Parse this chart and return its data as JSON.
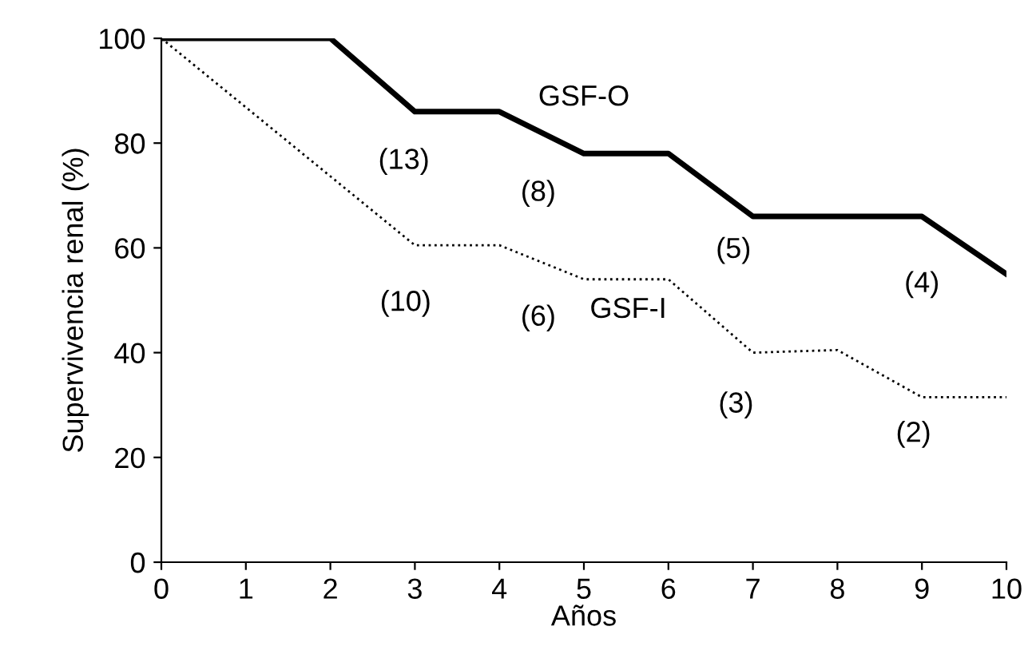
{
  "chart_data": {
    "type": "line",
    "xlabel": "Años",
    "ylabel": "Supervivencia renal (%)",
    "xlim": [
      0,
      10
    ],
    "ylim": [
      0,
      100
    ],
    "xticks": [
      0,
      1,
      2,
      3,
      4,
      5,
      6,
      7,
      8,
      9,
      10
    ],
    "yticks": [
      0,
      20,
      40,
      60,
      80,
      100
    ],
    "grid": false,
    "legend": false,
    "marker": "none",
    "series": [
      {
        "name": "GSF-O",
        "color": "#000000",
        "line_style": "solid",
        "x": [
          0,
          2,
          3,
          4,
          5,
          6,
          7,
          9,
          10
        ],
        "values": [
          100,
          100,
          86,
          86,
          78,
          78,
          66,
          66,
          55
        ]
      },
      {
        "name": "GSF-I",
        "color": "#000000",
        "line_style": "dotted",
        "x": [
          0,
          3,
          4,
          5,
          6,
          7,
          8,
          9,
          10
        ],
        "values": [
          100,
          60.5,
          60.5,
          54,
          54,
          40,
          40.5,
          31.5,
          31.5
        ]
      }
    ],
    "annotations": [
      "(13)",
      "(8)",
      "(5)",
      "(4)",
      "(10)",
      "(6)",
      "(3)",
      "(2)"
    ]
  }
}
